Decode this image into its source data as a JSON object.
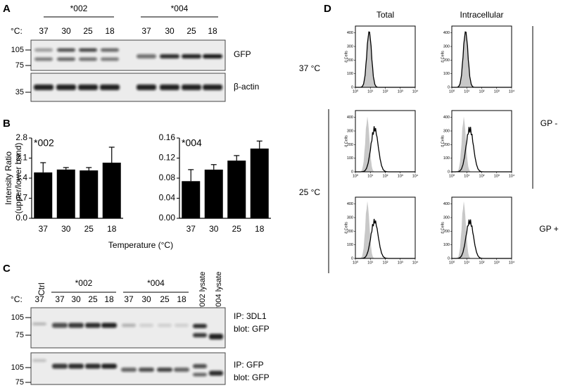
{
  "panels": {
    "A": {
      "letter": "A",
      "groups": [
        "*002",
        "*004"
      ],
      "unit": "°C:",
      "temps": [
        "37",
        "30",
        "25",
        "18"
      ],
      "mw": [
        "105",
        "75",
        "35"
      ],
      "blots": [
        "GFP",
        "β-actin"
      ]
    },
    "B": {
      "letter": "B",
      "y_label": [
        "Intensity Ratio",
        "(upper/lower band)"
      ],
      "x_label": "Temperature (°C)"
    },
    "C": {
      "letter": "C",
      "control": "Ctrl",
      "control_temp": "37",
      "groups": [
        "*002",
        "*004"
      ],
      "unit": "°C:",
      "temps": [
        "37",
        "30",
        "25",
        "18"
      ],
      "lysates": [
        "*002 lysate",
        "*004 lysate"
      ],
      "mw": [
        "105",
        "75"
      ],
      "blots": [
        [
          "IP: 3DL1",
          "blot: GFP"
        ],
        [
          "IP: GFP",
          "blot: GFP"
        ]
      ]
    },
    "D": {
      "letter": "D",
      "columns": [
        "Total",
        "Intracellular"
      ],
      "temperatures": [
        "37 °C",
        "25 °C"
      ],
      "conditions": [
        "GP -",
        "GP +"
      ],
      "y_label": "# Cells",
      "ylim": [
        0,
        450
      ],
      "yticks": [
        0,
        100,
        200,
        300,
        400
      ],
      "xlim": [
        1,
        10000
      ],
      "log": true,
      "xticks": [
        {
          "value": 1,
          "label": "10⁰"
        },
        {
          "value": 10,
          "label": "10¹"
        },
        {
          "value": 100,
          "label": "10²"
        },
        {
          "value": 1000,
          "label": "10³"
        },
        {
          "value": 10000,
          "label": "10⁴"
        }
      ]
    }
  },
  "chart_data": [
    {
      "type": "bar",
      "title": "*002",
      "categories": [
        "37",
        "30",
        "25",
        "18"
      ],
      "values": [
        1.6,
        1.7,
        1.67,
        1.94
      ],
      "errors": [
        0.34,
        0.07,
        0.1,
        0.54
      ],
      "color": "#000000",
      "ylim": [
        0,
        2.8
      ],
      "yticks": [
        {
          "value": 0,
          "label": "0.0"
        },
        0.7,
        1.4,
        2.1,
        2.8
      ]
    },
    {
      "type": "bar",
      "title": "*004",
      "categories": [
        "37",
        "30",
        "25",
        "18"
      ],
      "values": [
        0.074,
        0.097,
        0.115,
        0.139
      ],
      "errors": [
        0.023,
        0.01,
        0.01,
        0.015
      ],
      "color": "#000000",
      "ylim": [
        0,
        0.16
      ],
      "yticks": [
        {
          "value": 0,
          "label": "0.00"
        },
        0.04,
        0.08,
        0.12,
        0.16
      ]
    }
  ]
}
